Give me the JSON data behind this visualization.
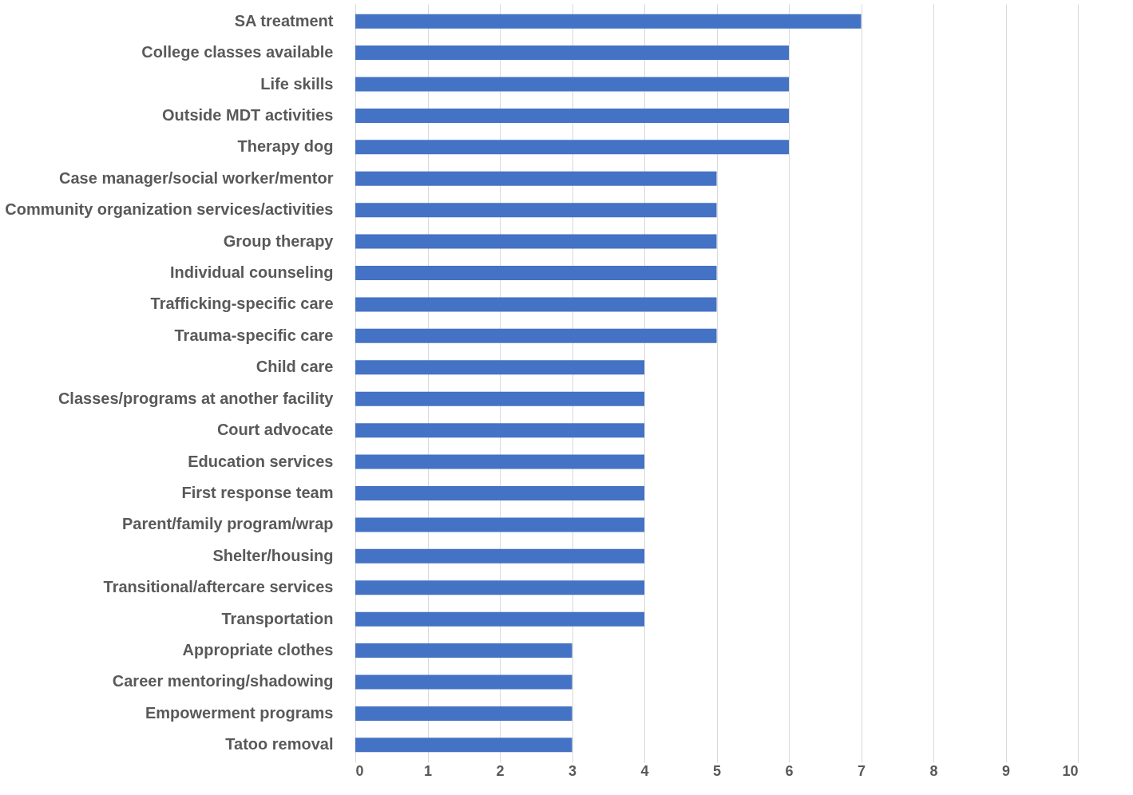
{
  "chart_data": {
    "type": "bar",
    "orientation": "horizontal",
    "categories": [
      "SA treatment",
      "College classes available",
      "Life skills",
      "Outside MDT activities",
      "Therapy dog",
      "Case manager/social worker/mentor",
      "Community organization services/activities",
      "Group therapy",
      "Individual counseling",
      "Trafficking-specific care",
      "Trauma-specific care",
      "Child care",
      "Classes/programs at another facility",
      "Court advocate",
      "Education services",
      "First response team",
      "Parent/family program/wrap",
      "Shelter/housing",
      "Transitional/aftercare services",
      "Transportation",
      "Appropriate clothes",
      "Career mentoring/shadowing",
      "Empowerment programs",
      "Tatoo removal"
    ],
    "values": [
      7,
      6,
      6,
      6,
      6,
      5,
      5,
      5,
      5,
      5,
      5,
      4,
      4,
      4,
      4,
      4,
      4,
      4,
      4,
      4,
      3,
      3,
      3,
      3
    ],
    "color": "#4472c4",
    "xlim": [
      0,
      10
    ],
    "xticks": [
      0,
      1,
      2,
      3,
      4,
      5,
      6,
      7,
      8,
      9,
      10
    ],
    "grid": "x"
  }
}
